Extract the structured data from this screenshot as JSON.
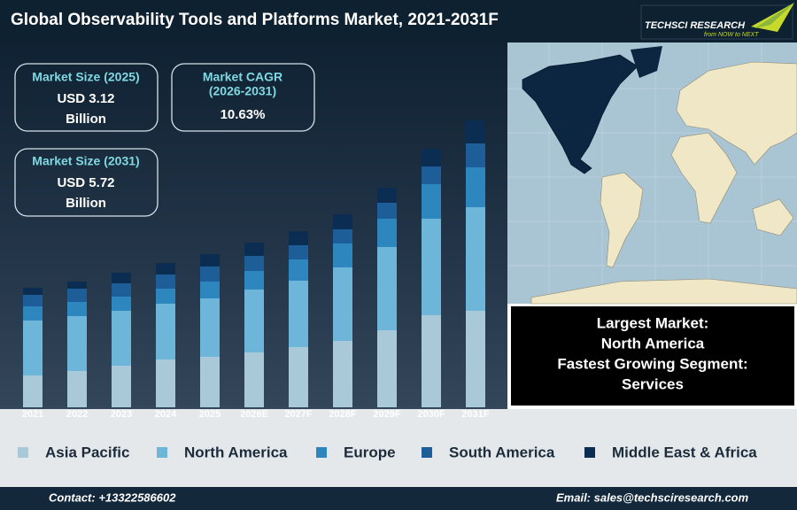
{
  "header": {
    "title": "Global Observability Tools and Platforms Market, 2021-2031F",
    "logo_name": "TECHSCI RESEARCH",
    "logo_tagline": "from NOW to NEXT"
  },
  "stats": [
    {
      "label": "Market Size (2025)",
      "value": "USD 3.12",
      "unit": "Billion"
    },
    {
      "label": "Market CAGR",
      "period": "(2026-2031)",
      "value": "10.63%"
    },
    {
      "label": "Market Size (2031)",
      "value": "USD 5.72",
      "unit": "Billion"
    }
  ],
  "chart_data": {
    "type": "bar",
    "stacked": true,
    "categories": [
      "2021",
      "2022",
      "2023",
      "2024",
      "2025",
      "2026E",
      "2027F",
      "2028F",
      "2029F",
      "2030F",
      "2031F"
    ],
    "series": [
      {
        "name": "Asia Pacific",
        "color": "#a9c8d8",
        "values": [
          36,
          41,
          47,
          54,
          57,
          62,
          68,
          75,
          87,
          104,
          109
        ]
      },
      {
        "name": "North America",
        "color": "#6db6d9",
        "values": [
          62,
          62,
          62,
          63,
          66,
          71,
          75,
          83,
          94,
          109,
          117
        ]
      },
      {
        "name": "Europe",
        "color": "#2d86bd",
        "values": [
          16,
          16,
          16,
          17,
          19,
          21,
          24,
          27,
          32,
          39,
          45
        ]
      },
      {
        "name": "South America",
        "color": "#1d5d98",
        "values": [
          13,
          15,
          15,
          16,
          17,
          17,
          16,
          16,
          18,
          20,
          27
        ]
      },
      {
        "name": "Middle East & Africa",
        "color": "#0c2d52",
        "values": [
          8,
          8,
          12,
          13,
          14,
          15,
          16,
          17,
          17,
          20,
          26
        ]
      }
    ]
  },
  "info_box": {
    "lines": [
      "Largest Market:",
      "North America",
      "Fastest Growing Segment:",
      "Services"
    ]
  },
  "footer": {
    "contact": "Contact: +13322586602",
    "email": "Email: sales@techsciresearch.com"
  }
}
